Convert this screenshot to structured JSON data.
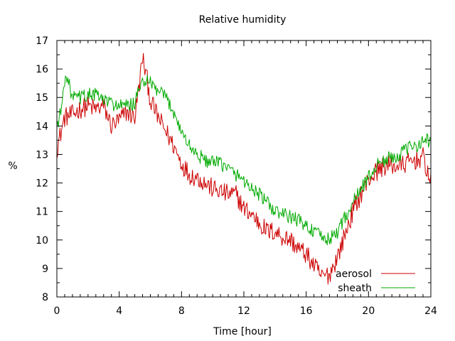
{
  "chart_data": {
    "type": "line",
    "title": "Relative humidity",
    "xlabel": "Time [hour]",
    "ylabel": "%",
    "xlim": [
      0,
      24
    ],
    "ylim": [
      8,
      17
    ],
    "xticks": [
      0,
      4,
      8,
      12,
      16,
      20,
      24
    ],
    "yticks": [
      8,
      9,
      10,
      11,
      12,
      13,
      14,
      15,
      16,
      17
    ],
    "grid": false,
    "legend_position": "bottom-right",
    "series": [
      {
        "name": "aerosol",
        "color": "#cc0000",
        "points": [
          [
            0.0,
            13.2
          ],
          [
            0.5,
            14.3
          ],
          [
            1.0,
            14.4
          ],
          [
            1.5,
            14.6
          ],
          [
            2.0,
            14.7
          ],
          [
            2.5,
            14.6
          ],
          [
            3.0,
            14.7
          ],
          [
            3.5,
            14.0
          ],
          [
            4.0,
            14.2
          ],
          [
            4.5,
            14.5
          ],
          [
            5.0,
            14.3
          ],
          [
            5.3,
            15.5
          ],
          [
            5.5,
            16.4
          ],
          [
            5.8,
            15.6
          ],
          [
            6.0,
            14.9
          ],
          [
            6.5,
            14.3
          ],
          [
            7.0,
            13.8
          ],
          [
            7.5,
            13.3
          ],
          [
            8.0,
            12.7
          ],
          [
            8.5,
            12.3
          ],
          [
            9.0,
            12.2
          ],
          [
            9.5,
            12.0
          ],
          [
            10.0,
            11.8
          ],
          [
            10.5,
            11.7
          ],
          [
            11.0,
            11.6
          ],
          [
            11.5,
            11.6
          ],
          [
            12.0,
            11.1
          ],
          [
            12.5,
            10.9
          ],
          [
            13.0,
            10.6
          ],
          [
            13.5,
            10.3
          ],
          [
            14.0,
            10.3
          ],
          [
            14.5,
            10.1
          ],
          [
            15.0,
            10.0
          ],
          [
            15.5,
            9.7
          ],
          [
            16.0,
            9.5
          ],
          [
            16.5,
            9.1
          ],
          [
            17.0,
            8.7
          ],
          [
            17.5,
            8.8
          ],
          [
            18.0,
            9.4
          ],
          [
            18.5,
            10.2
          ],
          [
            19.0,
            11.0
          ],
          [
            19.5,
            11.6
          ],
          [
            20.0,
            12.1
          ],
          [
            20.5,
            12.4
          ],
          [
            21.0,
            12.6
          ],
          [
            21.5,
            12.6
          ],
          [
            22.0,
            12.6
          ],
          [
            22.5,
            12.7
          ],
          [
            23.0,
            12.8
          ],
          [
            23.5,
            12.9
          ],
          [
            24.0,
            12.0
          ]
        ]
      },
      {
        "name": "sheath",
        "color": "#00aa00",
        "points": [
          [
            0.0,
            14.0
          ],
          [
            0.3,
            14.6
          ],
          [
            0.55,
            15.9
          ],
          [
            1.0,
            15.0
          ],
          [
            1.5,
            15.0
          ],
          [
            2.0,
            15.1
          ],
          [
            2.5,
            15.1
          ],
          [
            3.0,
            14.9
          ],
          [
            3.5,
            14.8
          ],
          [
            4.0,
            14.7
          ],
          [
            4.5,
            14.7
          ],
          [
            5.0,
            14.8
          ],
          [
            5.5,
            15.6
          ],
          [
            6.0,
            15.5
          ],
          [
            6.5,
            15.2
          ],
          [
            7.0,
            15.0
          ],
          [
            7.5,
            14.5
          ],
          [
            8.0,
            13.8
          ],
          [
            8.5,
            13.3
          ],
          [
            9.0,
            13.0
          ],
          [
            9.5,
            12.8
          ],
          [
            10.0,
            12.7
          ],
          [
            10.5,
            12.7
          ],
          [
            11.0,
            12.5
          ],
          [
            11.5,
            12.3
          ],
          [
            12.0,
            12.1
          ],
          [
            12.5,
            11.8
          ],
          [
            13.0,
            11.6
          ],
          [
            13.5,
            11.3
          ],
          [
            14.0,
            11.0
          ],
          [
            14.5,
            10.9
          ],
          [
            15.0,
            10.8
          ],
          [
            15.5,
            10.7
          ],
          [
            16.0,
            10.5
          ],
          [
            16.5,
            10.3
          ],
          [
            17.0,
            10.1
          ],
          [
            17.5,
            10.0
          ],
          [
            18.0,
            10.3
          ],
          [
            18.5,
            10.8
          ],
          [
            19.0,
            11.3
          ],
          [
            19.5,
            11.8
          ],
          [
            20.0,
            12.2
          ],
          [
            20.5,
            12.6
          ],
          [
            21.0,
            12.8
          ],
          [
            21.5,
            12.9
          ],
          [
            22.0,
            13.0
          ],
          [
            22.5,
            13.2
          ],
          [
            23.0,
            13.3
          ],
          [
            23.5,
            13.5
          ],
          [
            24.0,
            13.5
          ]
        ]
      }
    ]
  }
}
